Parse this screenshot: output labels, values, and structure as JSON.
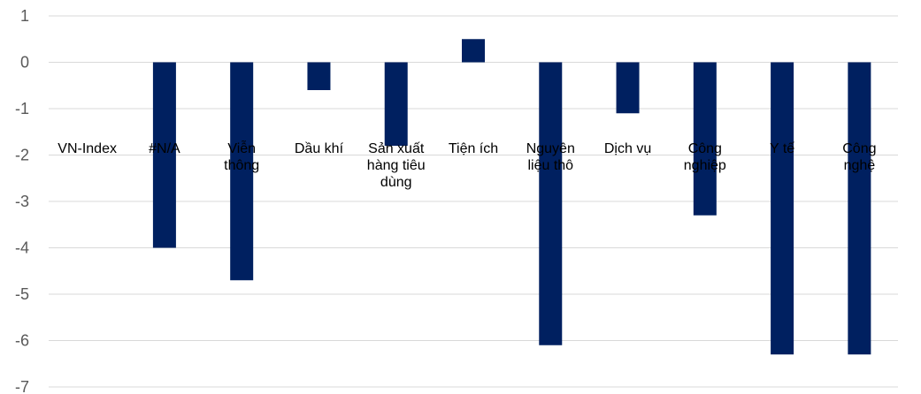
{
  "chart_data": {
    "type": "bar",
    "categories": [
      [
        "VN-Index"
      ],
      [
        "#N/A"
      ],
      [
        "Viễn",
        "thông"
      ],
      [
        "Dầu khí"
      ],
      [
        "Sản xuất",
        "hàng tiêu",
        "dùng"
      ],
      [
        "Tiện ích"
      ],
      [
        "Nguyên",
        "liệu thô"
      ],
      [
        "Dịch vụ"
      ],
      [
        "Công",
        "nghiệp"
      ],
      [
        "Y tế"
      ],
      [
        "Công",
        "nghệ"
      ]
    ],
    "values": [
      0,
      -4.0,
      -4.7,
      -0.6,
      -1.8,
      0.5,
      -6.1,
      -1.1,
      -3.3,
      -6.3,
      -6.3
    ],
    "ylim": [
      -7,
      1
    ],
    "yticks": [
      1,
      0,
      -1,
      -2,
      -3,
      -4,
      -5,
      -6,
      -7
    ],
    "title": "",
    "xlabel": "",
    "ylabel": "",
    "grid": true,
    "legend": "none",
    "bar_color": "#002060",
    "grid_color": "#d9d9d9"
  }
}
